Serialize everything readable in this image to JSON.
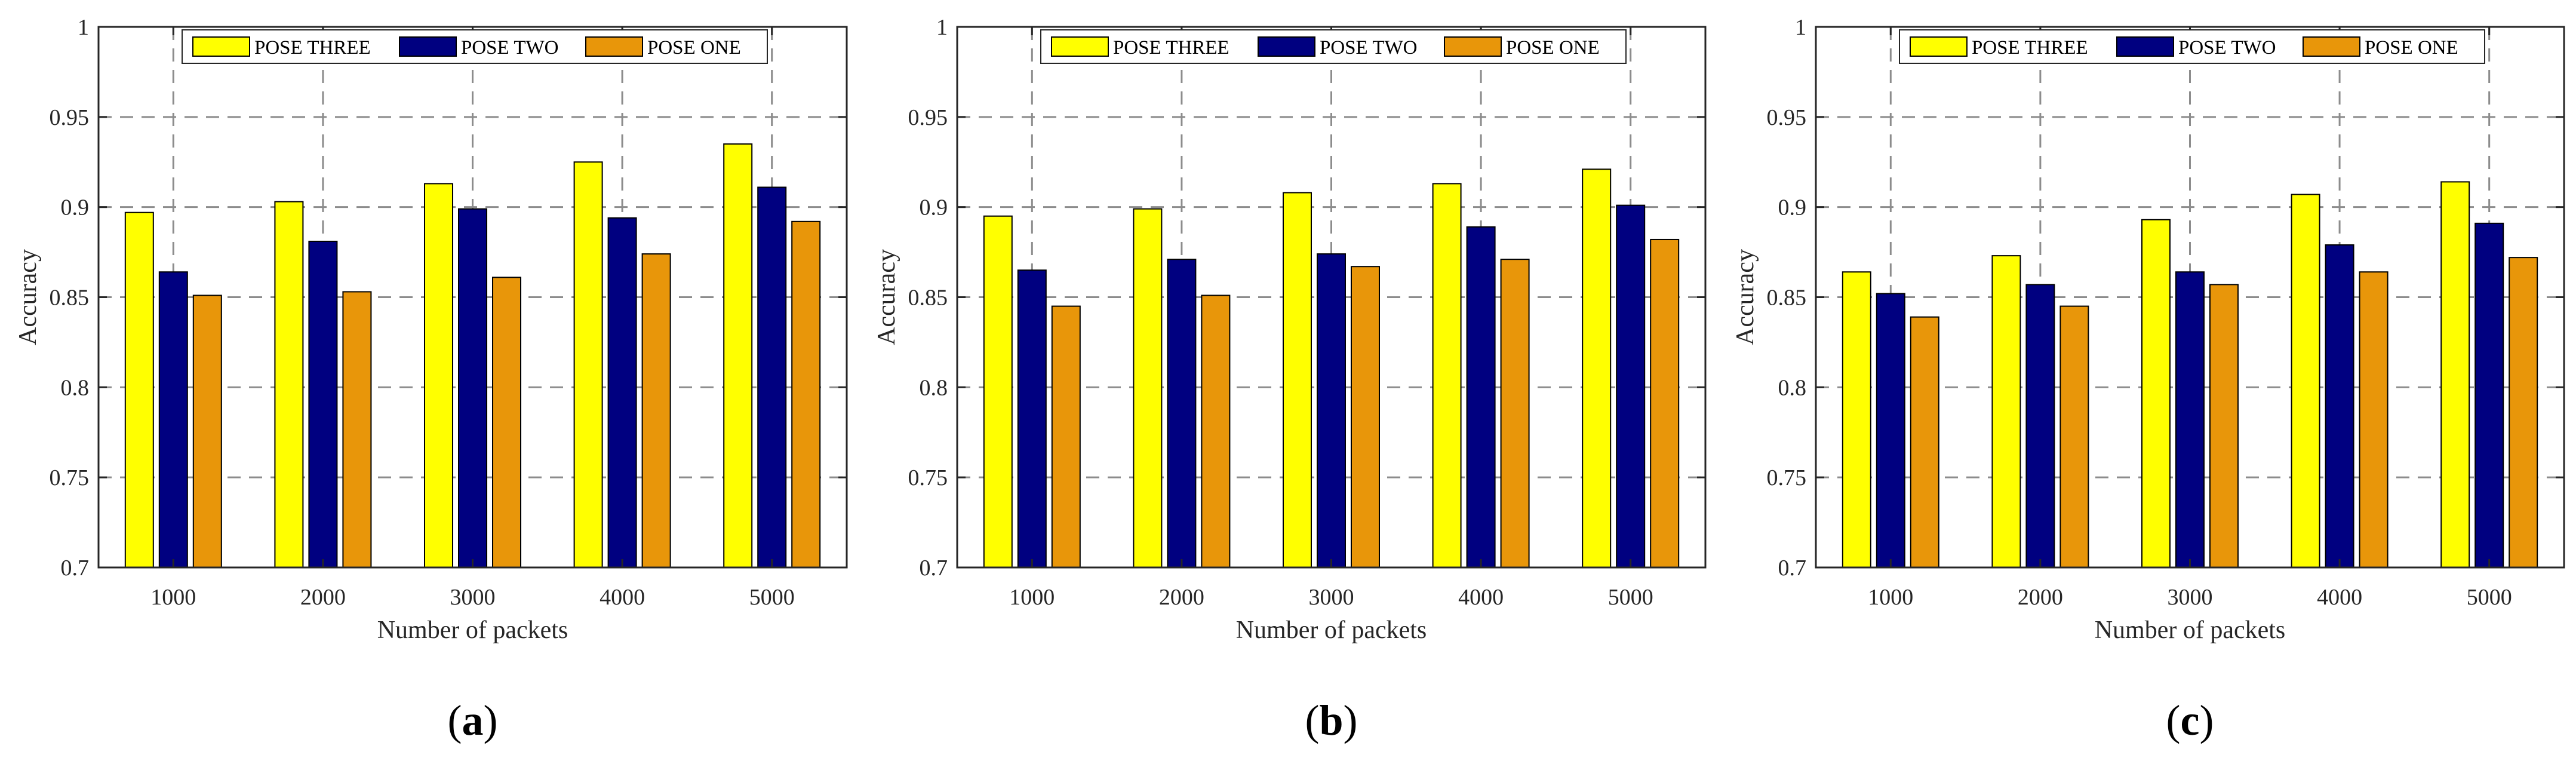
{
  "figure": {
    "legend_position": "top",
    "colors": {
      "POSE THREE": "#ffff00",
      "POSE TWO": "#000080",
      "POSE ONE": "#e8960a",
      "grid": "#8c8c8c",
      "axis": "#262626"
    }
  },
  "chart_data": [
    {
      "type": "bar",
      "caption_open": "(",
      "caption_letter": "a",
      "caption_close": ")",
      "xlabel": "Number of packets",
      "ylabel": "Accuracy",
      "ylim": [
        0.7,
        1.0
      ],
      "yticks": [
        "0.7",
        "0.75",
        "0.8",
        "0.85",
        "0.9",
        "0.95",
        "1"
      ],
      "ytick_values": [
        0.7,
        0.75,
        0.8,
        0.85,
        0.9,
        0.95,
        1.0
      ],
      "categories": [
        "1000",
        "2000",
        "3000",
        "4000",
        "5000"
      ],
      "grid": true,
      "series": [
        {
          "name": "POSE THREE",
          "values": [
            0.897,
            0.903,
            0.913,
            0.925,
            0.935
          ]
        },
        {
          "name": "POSE TWO",
          "values": [
            0.864,
            0.881,
            0.899,
            0.894,
            0.911
          ]
        },
        {
          "name": "POSE ONE",
          "values": [
            0.851,
            0.853,
            0.861,
            0.874,
            0.892
          ]
        }
      ]
    },
    {
      "type": "bar",
      "caption_open": "(",
      "caption_letter": "b",
      "caption_close": ")",
      "xlabel": "Number of packets",
      "ylabel": "Accuracy",
      "ylim": [
        0.7,
        1.0
      ],
      "yticks": [
        "0.7",
        "0.75",
        "0.8",
        "0.85",
        "0.9",
        "0.95",
        "1"
      ],
      "ytick_values": [
        0.7,
        0.75,
        0.8,
        0.85,
        0.9,
        0.95,
        1.0
      ],
      "categories": [
        "1000",
        "2000",
        "3000",
        "4000",
        "5000"
      ],
      "grid": true,
      "series": [
        {
          "name": "POSE THREE",
          "values": [
            0.895,
            0.899,
            0.908,
            0.913,
            0.921
          ]
        },
        {
          "name": "POSE TWO",
          "values": [
            0.865,
            0.871,
            0.874,
            0.889,
            0.901
          ]
        },
        {
          "name": "POSE ONE",
          "values": [
            0.845,
            0.851,
            0.867,
            0.871,
            0.882
          ]
        }
      ]
    },
    {
      "type": "bar",
      "caption_open": "(",
      "caption_letter": "c",
      "caption_close": ")",
      "xlabel": "Number of packets",
      "ylabel": "Accuracy",
      "ylim": [
        0.7,
        1.0
      ],
      "yticks": [
        "0.7",
        "0.75",
        "0.8",
        "0.85",
        "0.9",
        "0.95",
        "1"
      ],
      "ytick_values": [
        0.7,
        0.75,
        0.8,
        0.85,
        0.9,
        0.95,
        1.0
      ],
      "categories": [
        "1000",
        "2000",
        "3000",
        "4000",
        "5000"
      ],
      "grid": true,
      "series": [
        {
          "name": "POSE THREE",
          "values": [
            0.864,
            0.873,
            0.893,
            0.907,
            0.914
          ]
        },
        {
          "name": "POSE TWO",
          "values": [
            0.852,
            0.857,
            0.864,
            0.879,
            0.891
          ]
        },
        {
          "name": "POSE ONE",
          "values": [
            0.839,
            0.845,
            0.857,
            0.864,
            0.872
          ]
        }
      ]
    }
  ]
}
